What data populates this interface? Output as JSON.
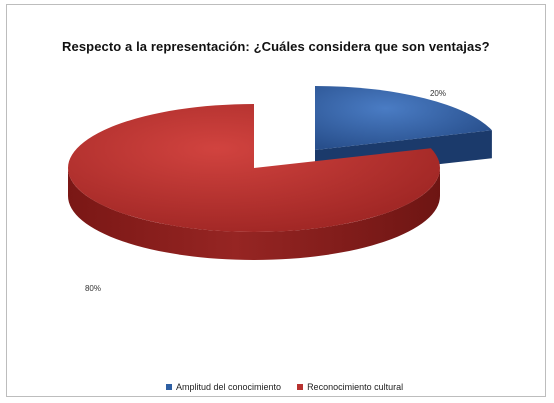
{
  "chart_data": {
    "type": "pie",
    "title": "Respecto a la representación: ¿Cuáles considera que son ventajas?",
    "categories": [
      "Amplitud del conocimiento",
      "Reconocimiento cultural"
    ],
    "values": [
      20,
      80
    ],
    "data_labels": [
      "20%",
      "80%"
    ],
    "colors": [
      "#2e5fa3",
      "#b73230"
    ],
    "legend_position": "bottom",
    "style": "3d-exploded"
  }
}
